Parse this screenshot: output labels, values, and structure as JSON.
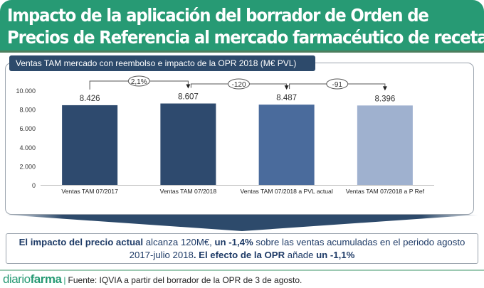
{
  "header": {
    "title_line1": "Impacto de la aplicación del borrador de Orden de",
    "title_line2": "Precios de Referencia al mercado farmacéutico de receta"
  },
  "panel": {
    "label": "Ventas TAM mercado con reembolso e impacto de la OPR 2018 (M€ PVL)"
  },
  "chart_data": {
    "type": "bar",
    "title": "Ventas TAM mercado con reembolso e impacto de la OPR 2018 (M€ PVL)",
    "xlabel": "",
    "ylabel": "",
    "ylim": [
      0,
      10000
    ],
    "yticks": [
      0,
      2000,
      4000,
      6000,
      8000,
      10000
    ],
    "ytick_labels": [
      "0",
      "2.000",
      "4.000",
      "6.000",
      "8.000",
      "10.000"
    ],
    "grid": false,
    "categories": [
      "Ventas TAM 07/2017",
      "Ventas TAM 07/2018",
      "Ventas TAM 07/2018 a PVL actual",
      "Ventas TAM 07/2018 a P Ref"
    ],
    "values": [
      8426,
      8607,
      8487,
      8396
    ],
    "value_labels": [
      "8.426",
      "8.607",
      "8.487",
      "8.396"
    ],
    "bar_colors": [
      "#2e4a6e",
      "#2e4a6e",
      "#4a6b9c",
      "#9fb1cf"
    ],
    "annotations": [
      {
        "from": 0,
        "to": 1,
        "label": "2,1%"
      },
      {
        "from": 1,
        "to": 2,
        "label": "-120"
      },
      {
        "from": 2,
        "to": 3,
        "label": "-91"
      }
    ]
  },
  "summary": {
    "p1_bold": "El impacto del precio actual",
    "p2": " alcanza 120M€, ",
    "p3_bold": "un -1,4%",
    "p4": " sobre las ventas acumuladas en el periodo agosto 2017-julio 2018",
    "p5_bold": ". El efecto de la OPR",
    "p6": " añade ",
    "p7_bold": "un -1,1%"
  },
  "footer": {
    "brand_light": "diario",
    "brand_bold": "farma",
    "separator": "|",
    "source": "Fuente: IQVIA a partir del borrador de la OPR de 3 de agosto."
  }
}
